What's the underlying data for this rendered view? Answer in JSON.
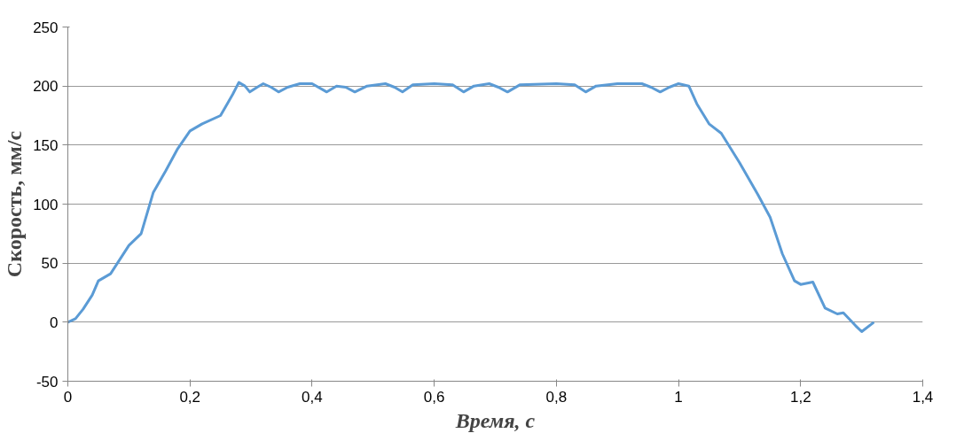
{
  "chart_data": {
    "type": "line",
    "xlabel": "Время, с",
    "ylabel": "Скорость, мм/с",
    "xlim": [
      0,
      1.4
    ],
    "ylim": [
      -50,
      250
    ],
    "xticks": [
      {
        "value": 0,
        "label": "0"
      },
      {
        "value": 0.2,
        "label": "0,2"
      },
      {
        "value": 0.4,
        "label": "0,4"
      },
      {
        "value": 0.6,
        "label": "0,6"
      },
      {
        "value": 0.8,
        "label": "0,8"
      },
      {
        "value": 1,
        "label": "1"
      },
      {
        "value": 1.2,
        "label": "1,2"
      },
      {
        "value": 1.4,
        "label": "1,4"
      }
    ],
    "yticks": [
      -50,
      0,
      50,
      100,
      150,
      200,
      250
    ],
    "grid": "y",
    "marker": "none",
    "line_style": "solid",
    "series": [
      {
        "color": "#5b9bd5",
        "x": [
          0,
          0.0125,
          0.025,
          0.04,
          0.05,
          0.07,
          0.1,
          0.12,
          0.14,
          0.16,
          0.18,
          0.2,
          0.22,
          0.25,
          0.27,
          0.28,
          0.29,
          0.298,
          0.31,
          0.32,
          0.333,
          0.345,
          0.36,
          0.38,
          0.4,
          0.424,
          0.44,
          0.455,
          0.47,
          0.49,
          0.52,
          0.535,
          0.548,
          0.565,
          0.6,
          0.63,
          0.648,
          0.665,
          0.69,
          0.705,
          0.72,
          0.74,
          0.8,
          0.83,
          0.848,
          0.865,
          0.9,
          0.94,
          0.955,
          0.97,
          0.985,
          1.0,
          1.017,
          1.03,
          1.05,
          1.07,
          1.1,
          1.13,
          1.15,
          1.17,
          1.19,
          1.2,
          1.22,
          1.24,
          1.26,
          1.27,
          1.29,
          1.3,
          1.32
        ],
        "values": [
          0,
          3,
          11,
          23,
          35,
          41,
          65,
          75,
          110,
          128,
          147,
          162,
          168,
          175,
          193,
          203,
          200,
          195,
          199,
          202,
          199,
          195,
          199,
          202,
          202,
          195,
          200,
          199,
          195,
          200,
          202,
          199,
          195,
          201,
          202,
          201,
          195,
          200,
          202,
          199,
          195,
          201,
          202,
          201,
          195,
          200,
          202,
          202,
          199,
          195,
          199,
          202,
          200,
          185,
          168,
          160,
          135,
          108,
          89,
          58,
          35,
          32,
          34,
          12,
          7,
          8,
          -3,
          -8,
          0
        ]
      }
    ]
  }
}
